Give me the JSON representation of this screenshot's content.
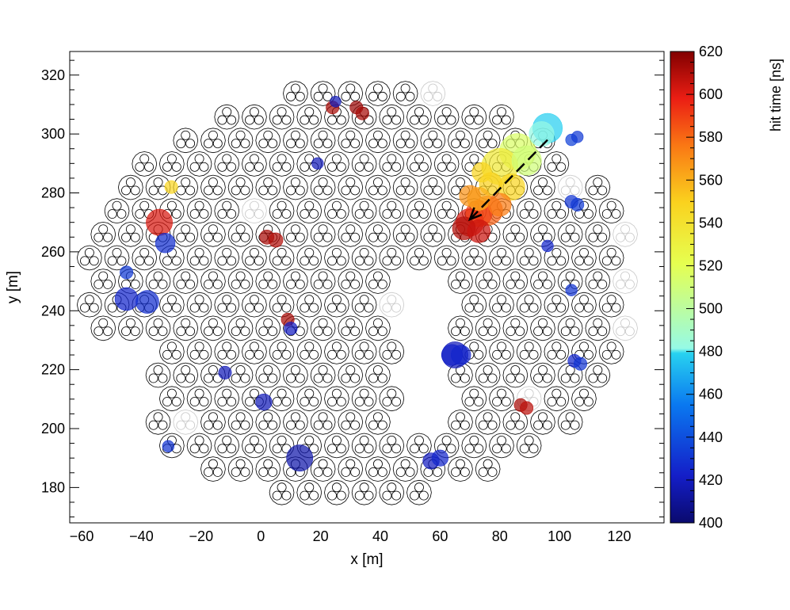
{
  "chart_data": {
    "type": "scatter",
    "xlabel": "x [m]",
    "ylabel": "y [m]",
    "xlim": [
      -64,
      135
    ],
    "ylim": [
      168,
      328
    ],
    "x_ticks": [
      -60,
      -40,
      -20,
      0,
      20,
      40,
      60,
      80,
      100,
      120
    ],
    "y_ticks": [
      180,
      200,
      220,
      240,
      260,
      280,
      300,
      320
    ],
    "colorbar": {
      "label": "hit time [ns]",
      "range": [
        400,
        620
      ],
      "ticks": [
        400,
        420,
        440,
        460,
        480,
        500,
        520,
        540,
        560,
        580,
        600,
        620
      ]
    },
    "shower_direction_arrow": {
      "from": [
        96,
        298
      ],
      "to": [
        70,
        271
      ]
    },
    "hits": [
      {
        "x": -34,
        "y": 270,
        "t": 602,
        "size": 3
      },
      {
        "x": -30,
        "y": 282,
        "t": 548,
        "size": 1
      },
      {
        "x": -32,
        "y": 263,
        "t": 428,
        "size": 2
      },
      {
        "x": -45,
        "y": 244,
        "t": 425,
        "size": 2.5
      },
      {
        "x": -38,
        "y": 243,
        "t": 428,
        "size": 2.5
      },
      {
        "x": -45,
        "y": 253,
        "t": 432,
        "size": 1
      },
      {
        "x": 2,
        "y": 265,
        "t": 612,
        "size": 1.2
      },
      {
        "x": 5,
        "y": 264,
        "t": 610,
        "size": 1.2
      },
      {
        "x": 19,
        "y": 290,
        "t": 418,
        "size": 0.8
      },
      {
        "x": 24,
        "y": 309,
        "t": 612,
        "size": 1
      },
      {
        "x": 25,
        "y": 311,
        "t": 418,
        "size": 0.7
      },
      {
        "x": 32,
        "y": 309,
        "t": 615,
        "size": 1
      },
      {
        "x": 34,
        "y": 307,
        "t": 612,
        "size": 1
      },
      {
        "x": 9,
        "y": 237,
        "t": 612,
        "size": 1
      },
      {
        "x": 10,
        "y": 234,
        "t": 420,
        "size": 1
      },
      {
        "x": -12,
        "y": 219,
        "t": 418,
        "size": 1
      },
      {
        "x": 1,
        "y": 209,
        "t": 418,
        "size": 1.5
      },
      {
        "x": -31,
        "y": 194,
        "t": 430,
        "size": 0.8
      },
      {
        "x": 13,
        "y": 190,
        "t": 415,
        "size": 3
      },
      {
        "x": 57,
        "y": 189,
        "t": 420,
        "size": 1.5
      },
      {
        "x": 60,
        "y": 190,
        "t": 425,
        "size": 1.5
      },
      {
        "x": 65,
        "y": 225,
        "t": 418,
        "size": 3
      },
      {
        "x": 64,
        "y": 225,
        "t": 423,
        "size": 2.2
      },
      {
        "x": 67,
        "y": 225,
        "t": 425,
        "size": 2
      },
      {
        "x": 87,
        "y": 208,
        "t": 612,
        "size": 1
      },
      {
        "x": 89,
        "y": 207,
        "t": 608,
        "size": 1
      },
      {
        "x": 105,
        "y": 223,
        "t": 425,
        "size": 1
      },
      {
        "x": 107,
        "y": 222,
        "t": 430,
        "size": 1
      },
      {
        "x": 104,
        "y": 277,
        "t": 430,
        "size": 1
      },
      {
        "x": 106,
        "y": 276,
        "t": 432,
        "size": 1
      },
      {
        "x": 96,
        "y": 262,
        "t": 425,
        "size": 0.8
      },
      {
        "x": 104,
        "y": 298,
        "t": 435,
        "size": 0.8
      },
      {
        "x": 106,
        "y": 299,
        "t": 432,
        "size": 0.8
      },
      {
        "x": 104,
        "y": 247,
        "t": 430,
        "size": 0.8
      },
      {
        "x": 96,
        "y": 302,
        "t": 478,
        "size": 3.5
      },
      {
        "x": 94,
        "y": 300,
        "t": 482,
        "size": 2.8
      },
      {
        "x": 86,
        "y": 294,
        "t": 515,
        "size": 4.5
      },
      {
        "x": 80,
        "y": 289,
        "t": 535,
        "size": 4.5
      },
      {
        "x": 89,
        "y": 291,
        "t": 510,
        "size": 3.5
      },
      {
        "x": 84,
        "y": 282,
        "t": 548,
        "size": 3
      },
      {
        "x": 77,
        "y": 283,
        "t": 550,
        "size": 2.5
      },
      {
        "x": 74,
        "y": 287,
        "t": 548,
        "size": 2
      },
      {
        "x": 73,
        "y": 278,
        "t": 560,
        "size": 2.5
      },
      {
        "x": 70,
        "y": 279,
        "t": 568,
        "size": 2.2
      },
      {
        "x": 76,
        "y": 274,
        "t": 582,
        "size": 3.5
      },
      {
        "x": 73,
        "y": 273,
        "t": 590,
        "size": 3
      },
      {
        "x": 70,
        "y": 270,
        "t": 602,
        "size": 3.2
      },
      {
        "x": 68,
        "y": 268,
        "t": 610,
        "size": 2.5
      },
      {
        "x": 73,
        "y": 267,
        "t": 605,
        "size": 2.5
      },
      {
        "x": 80,
        "y": 276,
        "t": 575,
        "size": 2.5
      }
    ]
  }
}
